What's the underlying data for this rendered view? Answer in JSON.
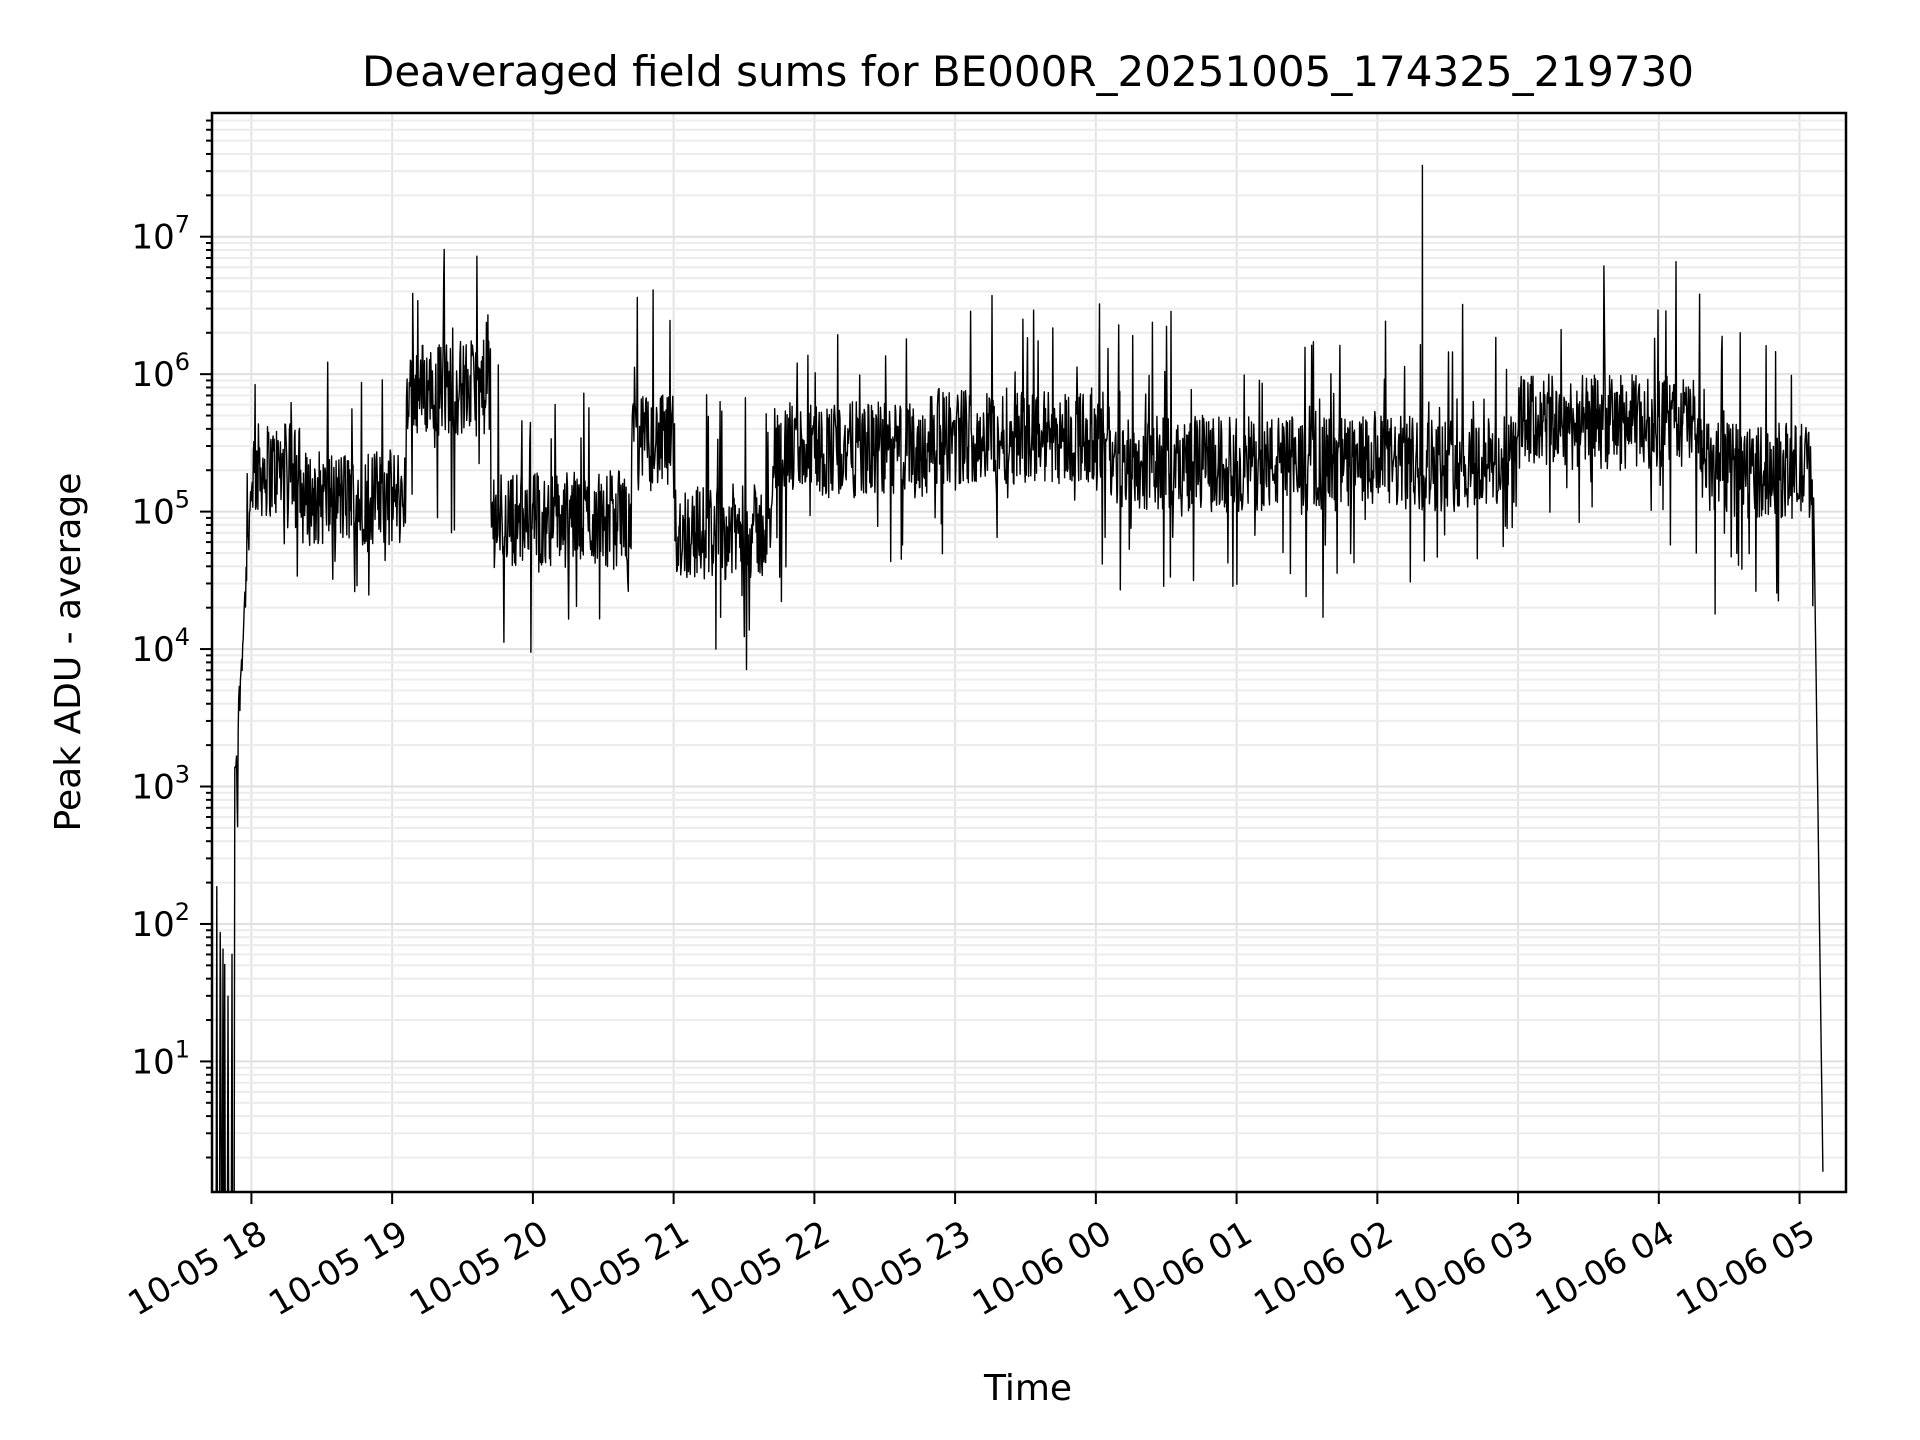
{
  "chart_data": {
    "type": "line",
    "title": "Deaveraged field sums for BE000R_20251005_174325_219730",
    "xlabel": "Time",
    "ylabel": "Peak ADU - average",
    "yscale": "log",
    "ylim_exponents": [
      0.05,
      7.9
    ],
    "xlim_hours": [
      17.72,
      29.33
    ],
    "grid": true,
    "line_color": "#000000",
    "x_ticks": [
      {
        "label": "10-05 18",
        "hour": 18
      },
      {
        "label": "10-05 19",
        "hour": 19
      },
      {
        "label": "10-05 20",
        "hour": 20
      },
      {
        "label": "10-05 21",
        "hour": 21
      },
      {
        "label": "10-05 22",
        "hour": 22
      },
      {
        "label": "10-05 23",
        "hour": 23
      },
      {
        "label": "10-06 00",
        "hour": 24
      },
      {
        "label": "10-06 01",
        "hour": 25
      },
      {
        "label": "10-06 02",
        "hour": 26
      },
      {
        "label": "10-06 03",
        "hour": 27
      },
      {
        "label": "10-06 04",
        "hour": 28
      },
      {
        "label": "10-06 05",
        "hour": 29
      }
    ],
    "y_ticks": [
      {
        "base": "10",
        "exp": "1",
        "value": 10
      },
      {
        "base": "10",
        "exp": "2",
        "value": 100
      },
      {
        "base": "10",
        "exp": "3",
        "value": 1000
      },
      {
        "base": "10",
        "exp": "4",
        "value": 10000
      },
      {
        "base": "10",
        "exp": "5",
        "value": 100000
      },
      {
        "base": "10",
        "exp": "6",
        "value": 1000000
      },
      {
        "base": "10",
        "exp": "7",
        "value": 10000000
      }
    ],
    "series": [
      {
        "name": "Deaveraged field sum",
        "x_start_hour": 17.73,
        "x_end_hour": 29.17,
        "baseline_segments": [
          {
            "from_hour": 17.88,
            "to_hour": 18.0,
            "log_start": 3.0,
            "log_end": 5.2
          },
          {
            "from_hour": 18.0,
            "to_hour": 18.35,
            "log_mean": 5.3
          },
          {
            "from_hour": 18.35,
            "to_hour": 19.1,
            "log_mean": 5.1
          },
          {
            "from_hour": 19.1,
            "to_hour": 19.7,
            "log_mean": 5.9
          },
          {
            "from_hour": 19.7,
            "to_hour": 20.7,
            "log_mean": 4.95
          },
          {
            "from_hour": 20.7,
            "to_hour": 21.0,
            "log_mean": 5.5
          },
          {
            "from_hour": 21.0,
            "to_hour": 21.7,
            "log_mean": 4.85
          },
          {
            "from_hour": 21.7,
            "to_hour": 22.8,
            "log_mean": 5.45
          },
          {
            "from_hour": 22.8,
            "to_hour": 24.1,
            "log_mean": 5.55
          },
          {
            "from_hour": 24.1,
            "to_hour": 27.0,
            "log_mean": 5.35
          },
          {
            "from_hour": 27.0,
            "to_hour": 28.3,
            "log_mean": 5.65
          },
          {
            "from_hour": 28.3,
            "to_hour": 29.1,
            "log_mean": 5.3
          }
        ],
        "spikes": [
          {
            "hour": 26.32,
            "value": 33000000
          },
          {
            "hour": 21.3,
            "value": 10000
          },
          {
            "hour": 19.68,
            "value": 2700000
          },
          {
            "hour": 28.4,
            "value": 18000
          }
        ]
      }
    ]
  }
}
